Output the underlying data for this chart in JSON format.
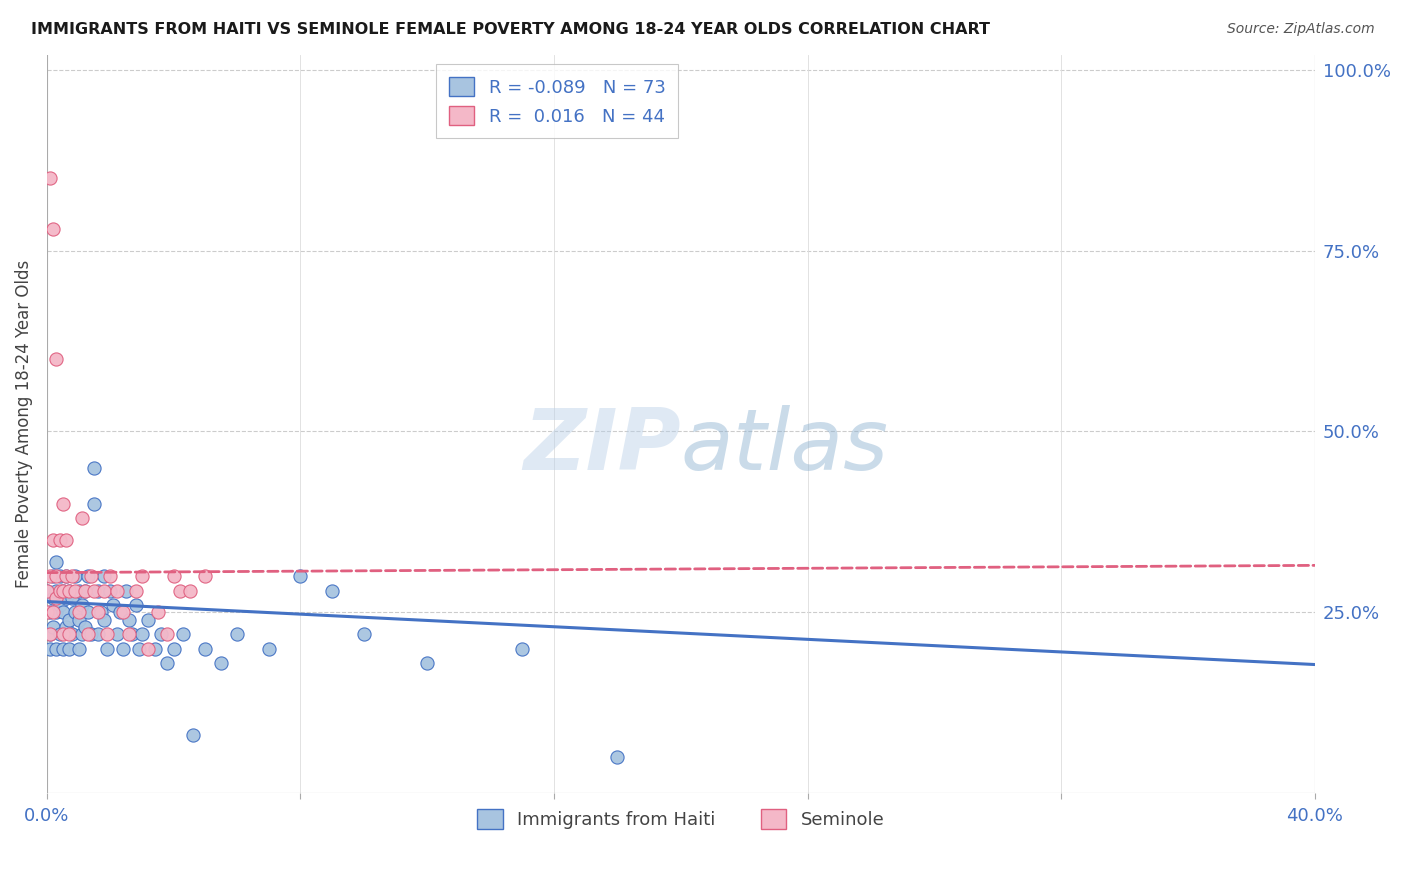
{
  "title": "IMMIGRANTS FROM HAITI VS SEMINOLE FEMALE POVERTY AMONG 18-24 YEAR OLDS CORRELATION CHART",
  "source": "Source: ZipAtlas.com",
  "ylabel": "Female Poverty Among 18-24 Year Olds",
  "right_yticks": [
    "100.0%",
    "75.0%",
    "50.0%",
    "25.0%"
  ],
  "right_ytick_vals": [
    1.0,
    0.75,
    0.5,
    0.25
  ],
  "legend_haiti": "Immigrants from Haiti",
  "legend_seminole": "Seminole",
  "R_haiti": "-0.089",
  "N_haiti": "73",
  "R_seminole": "0.016",
  "N_seminole": "44",
  "color_haiti_fill": "#a8c4e0",
  "color_haiti_edge": "#4472c4",
  "color_seminole_fill": "#f4b8c8",
  "color_seminole_edge": "#e06080",
  "color_haiti_line": "#4472c4",
  "color_seminole_line": "#e06080",
  "background_color": "#ffffff",
  "xlim": [
    0.0,
    0.4
  ],
  "ylim": [
    0.0,
    1.02
  ],
  "haiti_x": [
    0.0,
    0.001,
    0.001,
    0.001,
    0.002,
    0.002,
    0.002,
    0.003,
    0.003,
    0.003,
    0.003,
    0.004,
    0.004,
    0.004,
    0.005,
    0.005,
    0.005,
    0.006,
    0.006,
    0.006,
    0.007,
    0.007,
    0.007,
    0.008,
    0.008,
    0.009,
    0.009,
    0.01,
    0.01,
    0.01,
    0.011,
    0.011,
    0.012,
    0.012,
    0.013,
    0.013,
    0.014,
    0.015,
    0.015,
    0.016,
    0.016,
    0.017,
    0.018,
    0.018,
    0.019,
    0.02,
    0.021,
    0.022,
    0.023,
    0.024,
    0.025,
    0.026,
    0.027,
    0.028,
    0.029,
    0.03,
    0.032,
    0.034,
    0.036,
    0.038,
    0.04,
    0.043,
    0.046,
    0.05,
    0.055,
    0.06,
    0.07,
    0.08,
    0.09,
    0.1,
    0.12,
    0.15,
    0.18
  ],
  "haiti_y": [
    0.28,
    0.25,
    0.22,
    0.2,
    0.3,
    0.27,
    0.23,
    0.32,
    0.28,
    0.25,
    0.2,
    0.3,
    0.26,
    0.22,
    0.28,
    0.25,
    0.2,
    0.3,
    0.27,
    0.23,
    0.28,
    0.24,
    0.2,
    0.27,
    0.22,
    0.3,
    0.25,
    0.28,
    0.24,
    0.2,
    0.26,
    0.22,
    0.28,
    0.23,
    0.3,
    0.25,
    0.22,
    0.4,
    0.45,
    0.28,
    0.22,
    0.25,
    0.3,
    0.24,
    0.2,
    0.28,
    0.26,
    0.22,
    0.25,
    0.2,
    0.28,
    0.24,
    0.22,
    0.26,
    0.2,
    0.22,
    0.24,
    0.2,
    0.22,
    0.18,
    0.2,
    0.22,
    0.08,
    0.2,
    0.18,
    0.22,
    0.2,
    0.3,
    0.28,
    0.22,
    0.18,
    0.2,
    0.05
  ],
  "seminole_x": [
    0.0,
    0.0,
    0.001,
    0.001,
    0.001,
    0.002,
    0.002,
    0.002,
    0.003,
    0.003,
    0.003,
    0.004,
    0.004,
    0.005,
    0.005,
    0.005,
    0.006,
    0.006,
    0.007,
    0.007,
    0.008,
    0.009,
    0.01,
    0.011,
    0.012,
    0.013,
    0.014,
    0.015,
    0.016,
    0.018,
    0.019,
    0.02,
    0.022,
    0.024,
    0.026,
    0.028,
    0.03,
    0.032,
    0.035,
    0.038,
    0.04,
    0.042,
    0.045,
    0.05
  ],
  "seminole_y": [
    0.28,
    0.25,
    0.85,
    0.3,
    0.22,
    0.78,
    0.35,
    0.25,
    0.3,
    0.27,
    0.6,
    0.35,
    0.28,
    0.4,
    0.28,
    0.22,
    0.35,
    0.3,
    0.28,
    0.22,
    0.3,
    0.28,
    0.25,
    0.38,
    0.28,
    0.22,
    0.3,
    0.28,
    0.25,
    0.28,
    0.22,
    0.3,
    0.28,
    0.25,
    0.22,
    0.28,
    0.3,
    0.2,
    0.25,
    0.22,
    0.3,
    0.28,
    0.28,
    0.3
  ],
  "haiti_trend_x": [
    0.0,
    0.4
  ],
  "haiti_trend_y": [
    0.265,
    0.178
  ],
  "seminole_trend_x": [
    0.0,
    0.4
  ],
  "seminole_trend_y": [
    0.305,
    0.315
  ]
}
